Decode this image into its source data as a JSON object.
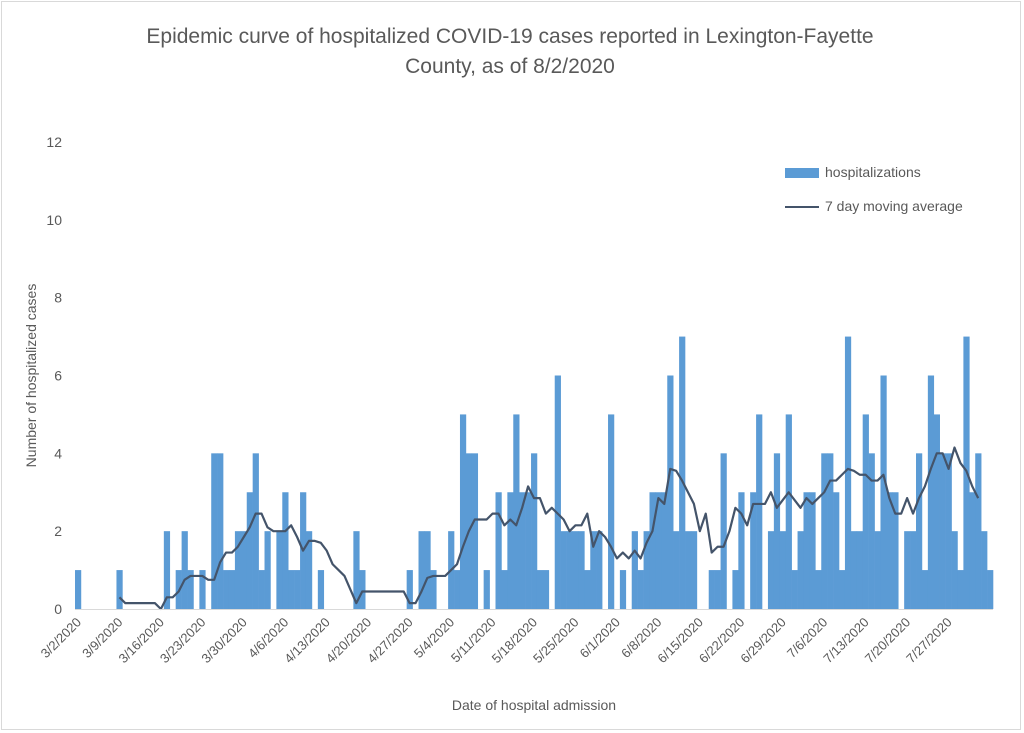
{
  "chart_data": {
    "type": "bar",
    "title": "Epidemic curve of hospitalized COVID-19 cases reported in Lexington-Fayette County, as of 8/2/2020",
    "title_lines": [
      "Epidemic curve of hospitalized COVID-19 cases reported in Lexington-Fayette",
      "County, as of 8/2/2020"
    ],
    "xlabel": "Date of hospital admission",
    "ylabel": "Number of hospitalized cases",
    "ylim": [
      0,
      12
    ],
    "yticks": [
      "0",
      "2",
      "4",
      "6",
      "8",
      "10",
      "12"
    ],
    "grid": false,
    "legend_position": "top-right",
    "start_date": "2020-03-02",
    "xtick_labels": [
      "3/2/2020",
      "3/9/2020",
      "3/16/2020",
      "3/23/2020",
      "3/30/2020",
      "4/6/2020",
      "4/13/2020",
      "4/20/2020",
      "4/27/2020",
      "5/4/2020",
      "5/11/2020",
      "5/18/2020",
      "5/25/2020",
      "6/1/2020",
      "6/8/2020",
      "6/15/2020",
      "6/22/2020",
      "6/29/2020",
      "7/6/2020",
      "7/13/2020",
      "7/20/2020",
      "7/27/2020"
    ],
    "series": [
      {
        "name": "hospitalizations",
        "kind": "bar",
        "color": "#5b9bd5",
        "values": [
          1,
          0,
          0,
          0,
          0,
          0,
          0,
          1,
          0,
          0,
          0,
          0,
          0,
          0,
          0,
          2,
          0,
          1,
          2,
          1,
          0,
          1,
          0,
          4,
          4,
          1,
          1,
          2,
          2,
          3,
          4,
          1,
          2,
          0,
          2,
          3,
          1,
          1,
          3,
          2,
          0,
          1,
          0,
          0,
          0,
          0,
          0,
          2,
          1,
          0,
          0,
          0,
          0,
          0,
          0,
          0,
          1,
          0,
          2,
          2,
          1,
          0,
          0,
          2,
          1,
          5,
          4,
          4,
          0,
          1,
          0,
          3,
          1,
          3,
          5,
          3,
          3,
          4,
          1,
          1,
          0,
          6,
          2,
          2,
          2,
          2,
          1,
          2,
          2,
          0,
          5,
          0,
          1,
          0,
          2,
          1,
          2,
          3,
          3,
          3,
          6,
          2,
          7,
          2,
          2,
          0,
          0,
          1,
          1,
          4,
          0,
          1,
          3,
          0,
          3,
          5,
          0,
          2,
          4,
          2,
          5,
          1,
          2,
          3,
          3,
          1,
          4,
          4,
          3,
          1,
          7,
          2,
          2,
          5,
          4,
          2,
          6,
          3,
          3,
          0,
          2,
          2,
          4,
          1,
          6,
          5,
          4,
          4,
          2,
          1,
          7,
          3,
          4,
          2,
          1
        ]
      },
      {
        "name": "7 day moving average",
        "kind": "line",
        "color": "#44546a",
        "values": [
          null,
          null,
          null,
          null,
          null,
          null,
          null,
          0.3,
          0.15,
          0.15,
          0.15,
          0.15,
          0.15,
          0.15,
          0,
          0.3,
          0.3,
          0.45,
          0.75,
          0.85,
          0.85,
          0.85,
          0.75,
          0.75,
          1.2,
          1.45,
          1.45,
          1.6,
          1.85,
          2.1,
          2.45,
          2.45,
          2.1,
          2.0,
          2.0,
          2.0,
          2.15,
          1.85,
          1.5,
          1.75,
          1.75,
          1.7,
          1.5,
          1.15,
          1.0,
          0.85,
          0.5,
          0.15,
          0.45,
          0.45,
          0.45,
          0.45,
          0.45,
          0.45,
          0.45,
          0.45,
          0.15,
          0.15,
          0.45,
          0.8,
          0.85,
          0.85,
          0.85,
          1.0,
          1.15,
          1.6,
          2.0,
          2.3,
          2.3,
          2.3,
          2.45,
          2.45,
          2.15,
          2.3,
          2.15,
          2.6,
          3.15,
          2.85,
          2.85,
          2.45,
          2.6,
          2.45,
          2.3,
          2.0,
          2.15,
          2.15,
          2.45,
          1.6,
          2.0,
          1.85,
          1.6,
          1.3,
          1.45,
          1.3,
          1.5,
          1.3,
          1.7,
          2.0,
          2.85,
          2.7,
          3.6,
          3.55,
          3.3,
          3.0,
          2.7,
          2.0,
          2.45,
          1.45,
          1.6,
          1.6,
          2.0,
          2.6,
          2.45,
          2.15,
          2.7,
          2.7,
          2.7,
          3.0,
          2.6,
          2.8,
          3.0,
          2.8,
          2.6,
          2.85,
          2.7,
          2.85,
          3.0,
          3.3,
          3.3,
          3.45,
          3.6,
          3.55,
          3.45,
          3.45,
          3.3,
          3.3,
          3.45,
          2.85,
          2.45,
          2.45,
          2.85,
          2.45,
          2.85,
          3.15,
          3.6,
          4.0,
          4.0,
          3.6,
          4.15,
          3.75,
          3.55,
          3.15,
          2.85
        ]
      }
    ]
  }
}
